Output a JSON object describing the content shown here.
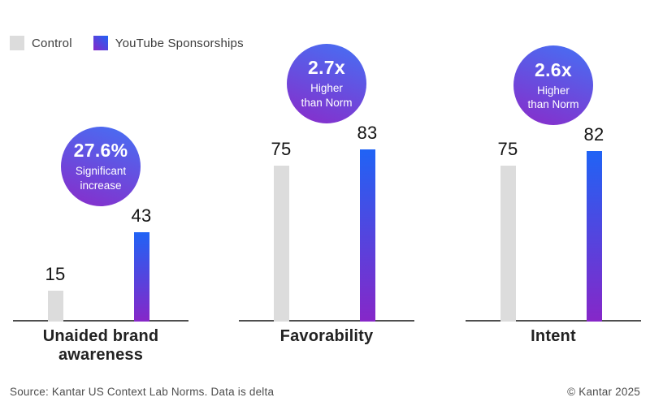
{
  "legend": {
    "items": [
      {
        "label": "Control",
        "color": "#DCDCDC"
      },
      {
        "label": "YouTube Sponsorships",
        "color_top": "#2063F5",
        "color_bottom": "#8627C8"
      }
    ]
  },
  "chart_data": {
    "type": "bar",
    "categories": [
      "Unaided brand awareness",
      "Favorability",
      "Intent"
    ],
    "series": [
      {
        "name": "Control",
        "values": [
          15,
          75,
          75
        ],
        "color": "#DCDCDC"
      },
      {
        "name": "YouTube Sponsorships",
        "values": [
          43,
          83,
          82
        ],
        "color_top": "#2063F5",
        "color_bottom": "#8627C8"
      }
    ],
    "badges": [
      {
        "headline": "27.6%",
        "sub_lines": [
          "Significant",
          "increase"
        ]
      },
      {
        "headline": "2.7x",
        "sub_lines": [
          "Higher",
          "than Norm"
        ]
      },
      {
        "headline": "2.6x",
        "sub_lines": [
          "Higher",
          "than Norm"
        ]
      }
    ],
    "value_labels": true,
    "ylim": [
      0,
      85
    ],
    "grid": false,
    "legend_position": "top-left",
    "badge_color_top": "#4471F5",
    "badge_color_bottom": "#8A2BC9",
    "axis_line_color": "#4F4F4F"
  },
  "footer": {
    "source": "Source: Kantar US Context Lab Norms. Data is delta",
    "copyright": "© Kantar 2025"
  }
}
